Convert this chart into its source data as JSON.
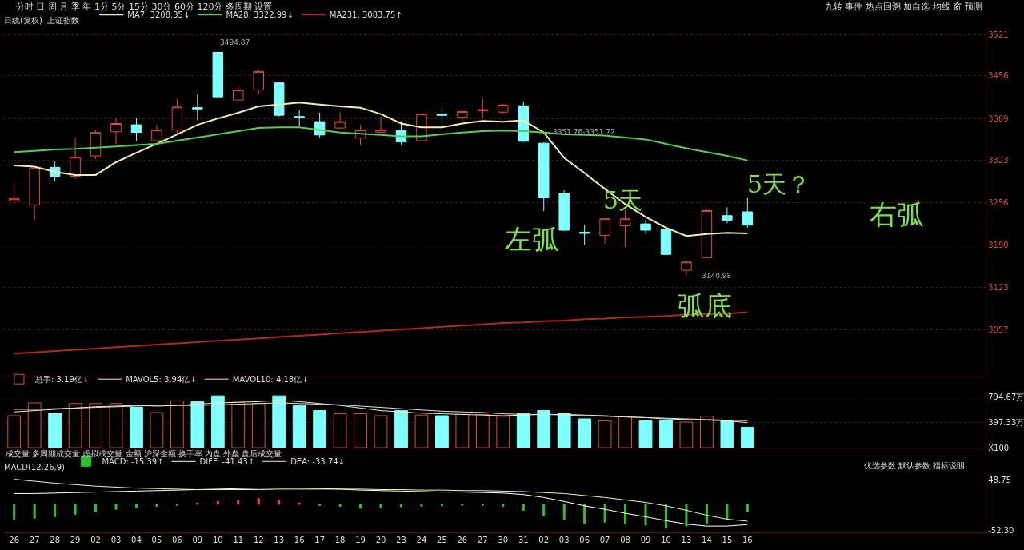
{
  "chart_data": [
    {
      "type": "candlestick",
      "subtitle": "日线(复权)  上证指数",
      "categories": [
        null,
        null,
        null,
        null,
        null,
        null,
        null,
        null,
        null,
        null,
        null,
        null,
        null,
        null,
        null,
        null,
        null,
        null,
        null,
        null,
        null,
        null,
        null,
        null,
        null,
        null,
        null,
        null,
        null,
        null,
        null,
        null,
        null,
        null,
        null,
        null,
        null
      ],
      "ohlc": [
        [
          3259,
          3287,
          3254,
          3263
        ],
        [
          3253,
          3312,
          3229,
          3311
        ],
        [
          3312,
          3321,
          3290,
          3298
        ],
        [
          3298,
          3359,
          3294,
          3328
        ],
        [
          3330,
          3371,
          3325,
          3367
        ],
        [
          3368,
          3389,
          3349,
          3381
        ],
        [
          3379,
          3390,
          3354,
          3367
        ],
        [
          3354,
          3379,
          3353,
          3371
        ],
        [
          3371,
          3420,
          3364,
          3407
        ],
        [
          3406,
          3428,
          3386,
          3404
        ],
        [
          3493,
          3494.87,
          3420,
          3423
        ],
        [
          3418,
          3440,
          3417,
          3434
        ],
        [
          3434,
          3466,
          3427,
          3463
        ],
        [
          3445,
          3446,
          3392,
          3394
        ],
        [
          3392,
          3403,
          3377,
          3390
        ],
        [
          3384,
          3398,
          3358,
          3363
        ],
        [
          3374,
          3399,
          3373,
          3384
        ],
        [
          3358,
          3379,
          3347,
          3371
        ],
        [
          3367,
          3391,
          3367,
          3371
        ],
        [
          3370,
          3385,
          3348,
          3352
        ],
        [
          3354,
          3397,
          3353,
          3396
        ],
        [
          3396,
          3408,
          3376,
          3394
        ],
        [
          3391,
          3403,
          3381,
          3400
        ],
        [
          3401,
          3421,
          3389,
          3403
        ],
        [
          3399,
          3412,
          3397,
          3410
        ],
        [
          3409,
          3416,
          3352,
          3353
        ],
        [
          3350,
          3351,
          3243,
          3264
        ],
        [
          3271,
          3276,
          3212,
          3213
        ],
        [
          3210,
          3222,
          3190,
          3208
        ],
        [
          3205,
          3232,
          3192,
          3231
        ],
        [
          3220,
          3245,
          3187,
          3231
        ],
        [
          3223,
          3230,
          3207,
          3213
        ],
        [
          3214,
          3222,
          3174,
          3175
        ],
        [
          3150,
          3166,
          3140.98,
          3163
        ],
        [
          3170,
          3246,
          3169,
          3244
        ],
        [
          3236,
          3249,
          3224,
          3229
        ],
        [
          3242,
          3264,
          3217,
          3221
        ]
      ],
      "colors": [
        "#e8473c",
        "#e8473c",
        "#80ffff",
        "#e8473c",
        "#e8473c",
        "#e8473c",
        "#80ffff",
        "#e8473c",
        "#e8473c",
        "#80ffff",
        "#80ffff",
        "#e8473c",
        "#e8473c",
        "#80ffff",
        "#80ffff",
        "#80ffff",
        "#e8473c",
        "#e8473c",
        "#e8473c",
        "#80ffff",
        "#e8473c",
        "#80ffff",
        "#e8473c",
        "#e8473c",
        "#e8473c",
        "#80ffff",
        "#80ffff",
        "#80ffff",
        "#80ffff",
        "#e8473c",
        "#e8473c",
        "#80ffff",
        "#80ffff",
        "#e8473c",
        "#e8473c",
        "#80ffff",
        "#80ffff"
      ],
      "series": [
        {
          "name": "MA7: 3208.35↓",
          "type": "line",
          "color": "#f3efb0",
          "values": [
            3315,
            3313,
            3305,
            3300,
            3300,
            3320,
            3335,
            3349,
            3364,
            3379,
            3389,
            3398,
            3408,
            3411,
            3414,
            3411,
            3408,
            3406,
            3396,
            3381,
            3375,
            3375,
            3381,
            3385,
            3384,
            3386,
            3367,
            3327,
            3303,
            3278,
            3254,
            3234,
            3217,
            3204,
            3207,
            3209,
            3208
          ]
        },
        {
          "name": "MA28: 3322.99↓",
          "type": "line",
          "color": "#4fd14f",
          "values": [
            3336,
            3338,
            3340,
            3341,
            3343,
            3345,
            3347,
            3349,
            3354,
            3359,
            3364,
            3369,
            3374,
            3375,
            3375,
            3371,
            3367,
            3365,
            3363,
            3361,
            3361,
            3364,
            3367,
            3369,
            3370,
            3369,
            3367,
            3364,
            3363,
            3362,
            3359,
            3356,
            3349,
            3342,
            3336,
            3330,
            3323
          ]
        },
        {
          "name": "MA231: 3083.75↑",
          "type": "line",
          "color": "#b3281e",
          "values": [
            3019,
            3021,
            3023,
            3025,
            3027,
            3029,
            3031,
            3033,
            3035,
            3037,
            3039,
            3041,
            3043,
            3045,
            3047,
            3049,
            3051,
            3053,
            3055,
            3057,
            3059,
            3061,
            3063,
            3065,
            3067,
            3068,
            3070,
            3071,
            3073,
            3074,
            3076,
            3077,
            3078,
            3080,
            3081,
            3082,
            3084
          ]
        }
      ],
      "ylim": [
        2983,
        3533
      ],
      "yticks": [
        3521,
        3456,
        3389,
        3323,
        3256,
        3190,
        3123,
        3057
      ],
      "grid": "y",
      "legend": "top left",
      "marker": "none",
      "tick_labels": "y",
      "annotations": [
        "分时 日 周 月 季 年 1分 5分 15分 30分 60分 120分 多周期 设置",
        "九转 事件 热点回溯 加自选 均线 窗 预测",
        "3494.87",
        "3351.76-3351.72",
        "3140.98",
        "左弧",
        "5天",
        "弧底",
        "5天？",
        "右弧"
      ]
    },
    {
      "type": "bar",
      "categories": [
        null,
        null,
        null,
        null,
        null,
        null,
        null,
        null,
        null,
        null,
        null,
        null,
        null,
        null,
        null,
        null,
        null,
        null,
        null,
        null,
        null,
        null,
        null,
        null,
        null,
        null,
        null,
        null,
        null,
        null,
        null,
        null,
        null,
        null,
        null,
        null,
        null
      ],
      "series": [
        {
          "name": "总手: 3.19亿↓",
          "type": "bar",
          "colors": [
            "#e8473c",
            "#e8473c",
            "#80ffff",
            "#e8473c",
            "#e8473c",
            "#e8473c",
            "#80ffff",
            "#e8473c",
            "#e8473c",
            "#80ffff",
            "#80ffff",
            "#e8473c",
            "#e8473c",
            "#80ffff",
            "#80ffff",
            "#80ffff",
            "#e8473c",
            "#e8473c",
            "#e8473c",
            "#80ffff",
            "#e8473c",
            "#80ffff",
            "#e8473c",
            "#e8473c",
            "#e8473c",
            "#80ffff",
            "#80ffff",
            "#80ffff",
            "#80ffff",
            "#e8473c",
            "#e8473c",
            "#80ffff",
            "#80ffff",
            "#e8473c",
            "#e8473c",
            "#80ffff",
            "#80ffff"
          ],
          "values": [
            500,
            700,
            540,
            690,
            690,
            690,
            630,
            550,
            730,
            720,
            810,
            710,
            690,
            810,
            660,
            580,
            530,
            530,
            500,
            580,
            510,
            500,
            520,
            520,
            490,
            530,
            580,
            540,
            450,
            420,
            490,
            420,
            430,
            400,
            490,
            430,
            320
          ]
        },
        {
          "name": "MAVOL5: 3.94亿↓",
          "type": "line",
          "color": "#f3efb0",
          "values": [
            560,
            580,
            600,
            620,
            640,
            650,
            660,
            650,
            660,
            680,
            700,
            710,
            720,
            740,
            720,
            690,
            660,
            620,
            580,
            560,
            540,
            530,
            520,
            510,
            500,
            510,
            520,
            520,
            510,
            500,
            480,
            470,
            450,
            440,
            430,
            420,
            390
          ]
        },
        {
          "name": "MAVOL10: 4.18亿↓",
          "type": "line",
          "color": "#e0e0e0",
          "values": [
            600,
            600,
            610,
            620,
            630,
            640,
            650,
            660,
            660,
            660,
            670,
            680,
            690,
            700,
            690,
            680,
            670,
            650,
            630,
            610,
            590,
            570,
            560,
            550,
            530,
            520,
            520,
            510,
            500,
            490,
            480,
            470,
            460,
            450,
            440,
            430,
            420
          ]
        }
      ],
      "ylim": [
        0,
        878
      ],
      "yticks": [
        {
          "value": 794.67,
          "label": "794.67万"
        },
        {
          "value": 397.33,
          "label": "397.33万"
        },
        {
          "value": 0,
          "label": "X100"
        }
      ],
      "grid": "y",
      "legend": "top left",
      "marker": "none",
      "tick_labels": "y",
      "annotations": [
        "成交量 多周期成交量 虚拟成交量 金额 沪深金额 换手率 内盘 外盘 盘后成交量"
      ]
    },
    {
      "type": "bar",
      "title": "MACD(12,26,9)",
      "categories": [
        "26",
        "27",
        "28",
        "29",
        "02",
        "03",
        "04",
        "05",
        "06",
        "09",
        "10",
        "11",
        "12",
        "13",
        "16",
        "17",
        "18",
        "19",
        "20",
        "23",
        "24",
        "25",
        "26",
        "27",
        "30",
        "31",
        "02",
        "03",
        "06",
        "07",
        "08",
        "09",
        "10",
        "13",
        "14",
        "15",
        "16"
      ],
      "series": [
        {
          "name": "MACD: -15.39↑",
          "type": "bar",
          "colors": [
            "#30c030",
            "#30c030",
            "#30c030",
            "#30c030",
            "#30c030",
            "#30c030",
            "#30c030",
            "#30c030",
            "#30c030",
            "#ff4040",
            "#ff4040",
            "#ff4040",
            "#ff4040",
            "#ff4040",
            "#ff4040",
            "#30c030",
            "#30c030",
            "#30c030",
            "#30c030",
            "#30c030",
            "#30c030",
            "#30c030",
            "#30c030",
            "#30c030",
            "#30c030",
            "#30c030",
            "#30c030",
            "#30c030",
            "#30c030",
            "#30c030",
            "#30c030",
            "#30c030",
            "#30c030",
            "#30c030",
            "#30c030",
            "#30c030",
            "#30c030"
          ],
          "values": [
            -30,
            -28,
            -25,
            -20,
            -15,
            -10,
            -6,
            -4,
            -2,
            3,
            6,
            9,
            12,
            8,
            3,
            -2,
            -4,
            -8,
            -6,
            -5,
            -4,
            -3,
            -2,
            -2,
            -4,
            -12,
            -22,
            -30,
            -38,
            -36,
            -40,
            -42,
            -48,
            -44,
            -38,
            -30,
            -15
          ]
        },
        {
          "name": "DIFF: -41.43↑",
          "type": "line",
          "color": "#ffffff",
          "values": [
            22,
            22,
            23,
            24,
            25,
            26,
            27,
            28,
            29,
            30,
            31,
            32,
            33,
            33,
            33,
            32,
            31,
            29,
            28,
            27,
            26,
            25,
            25,
            24,
            23,
            20,
            14,
            6,
            -3,
            -10,
            -18,
            -25,
            -33,
            -40,
            -44,
            -44,
            -41
          ]
        },
        {
          "name": "DEA: -33.74↓",
          "type": "line",
          "color": "#f3efb0",
          "values": [
            51,
            47,
            43,
            40,
            37,
            35,
            33,
            32,
            31,
            30,
            30,
            30,
            30,
            31,
            31,
            31,
            31,
            31,
            30,
            30,
            29,
            29,
            28,
            28,
            27,
            26,
            24,
            22,
            18,
            14,
            9,
            4,
            -3,
            -12,
            -22,
            -30,
            -34
          ]
        }
      ],
      "ylim": [
        -57,
        62
      ],
      "yticks": [
        48.75,
        {
          "value": -52.3,
          "label": "-52.30"
        }
      ],
      "legend": "top left",
      "marker": "none",
      "annotations": [
        "优选参数 默认参数 指标说明"
      ]
    }
  ]
}
